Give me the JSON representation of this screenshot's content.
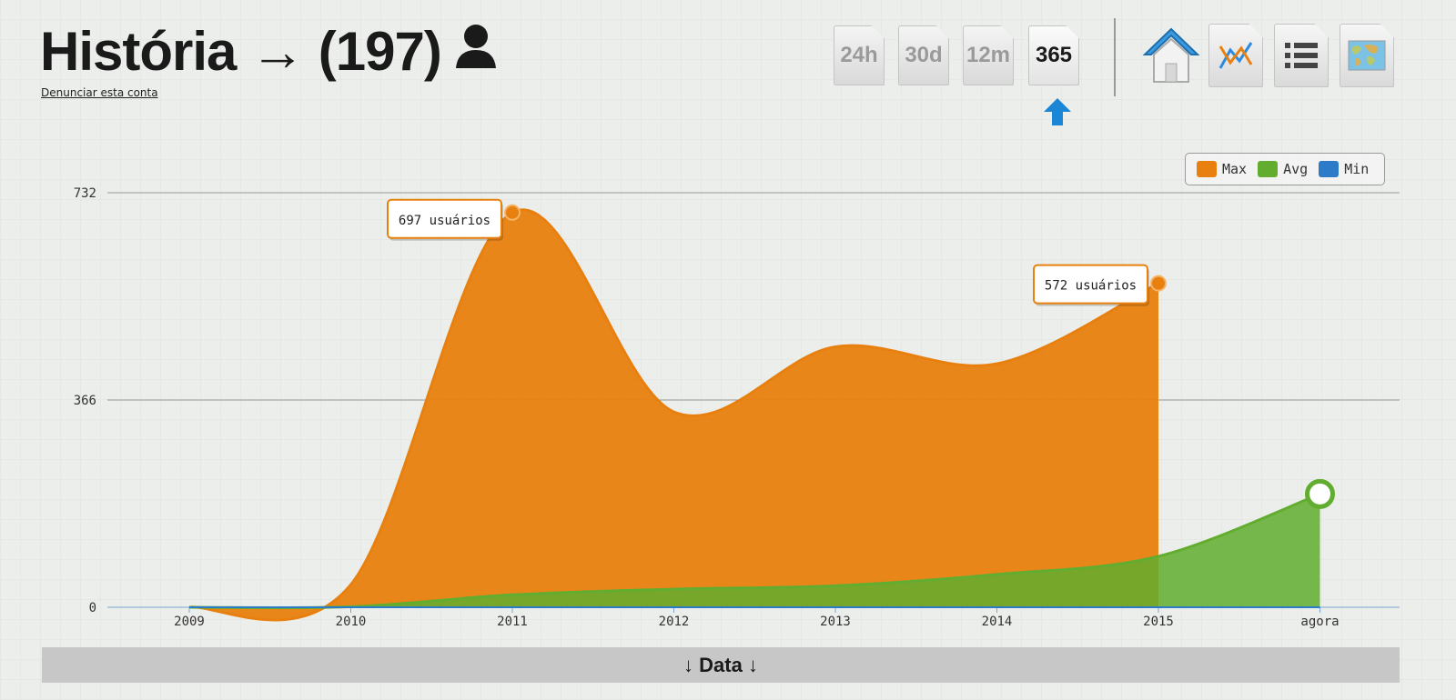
{
  "header": {
    "title": "História → (197)",
    "report_link": "Denunciar esta conta"
  },
  "range_buttons": [
    {
      "label": "24h",
      "active": false
    },
    {
      "label": "30d",
      "active": false
    },
    {
      "label": "12m",
      "active": false
    },
    {
      "label": "365",
      "active": true
    }
  ],
  "nav_icons": [
    "home-icon",
    "chart-lines-icon",
    "list-icon",
    "world-map-icon"
  ],
  "colors": {
    "max": "#e8800f",
    "avg": "#62ad2f",
    "min": "#2c7bc9",
    "axis_bar": "#c6c7c6"
  },
  "chart_data": {
    "type": "area",
    "categories": [
      "2009",
      "2010",
      "2011",
      "2012",
      "2013",
      "2014",
      "2015",
      "agora"
    ],
    "series": [
      {
        "name": "Max",
        "values": [
          0,
          40,
          697,
          345,
          460,
          430,
          572,
          null
        ]
      },
      {
        "name": "Avg",
        "values": [
          0,
          1,
          22,
          32,
          38,
          58,
          90,
          200
        ]
      },
      {
        "name": "Min",
        "values": [
          0,
          0,
          0,
          0,
          0,
          0,
          0,
          0
        ]
      }
    ],
    "yticks": [
      0,
      366,
      732
    ],
    "ylim": [
      0,
      732
    ],
    "xlabel": "↓ Data ↓",
    "legend_position": "top-right",
    "grid": true,
    "annotations": [
      {
        "text": "697 usuários",
        "category": "2011",
        "value": 697
      },
      {
        "text": "572 usuários",
        "category": "2015",
        "value": 572
      }
    ]
  }
}
